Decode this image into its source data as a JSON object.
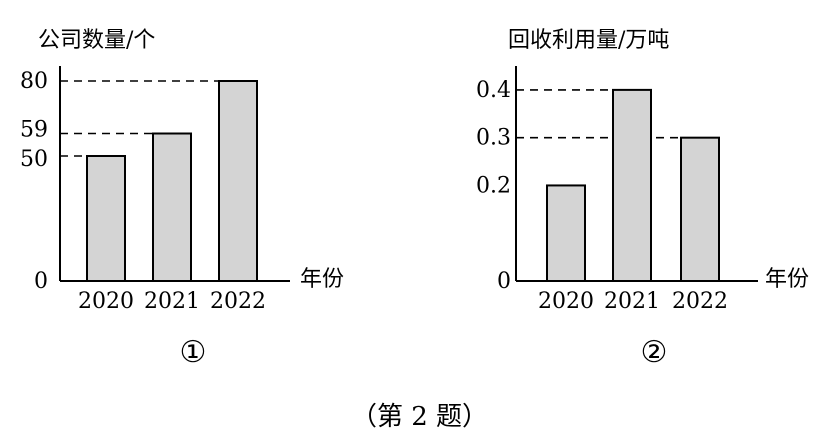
{
  "caption": "（第 2 题）",
  "colors": {
    "bar_fill": "#d4d4d4",
    "ink": "#000000"
  },
  "chart_data": [
    {
      "type": "bar",
      "ylabel": "公司数量/个",
      "xlabel": "年份",
      "categories": [
        "2020",
        "2021",
        "2022"
      ],
      "values": [
        50,
        59,
        80
      ],
      "yticks": [
        0,
        50,
        59,
        80
      ],
      "ytick_labels": [
        "0",
        "50",
        "59",
        "80"
      ],
      "dashed_lines": [
        50,
        59,
        80
      ],
      "ylim": [
        0,
        86
      ],
      "number_label": "①",
      "grid": false
    },
    {
      "type": "bar",
      "ylabel": "回收利用量/万吨",
      "xlabel": "年份",
      "categories": [
        "2020",
        "2021",
        "2022"
      ],
      "values": [
        0.2,
        0.4,
        0.3
      ],
      "yticks": [
        0,
        0.2,
        0.3,
        0.4
      ],
      "ytick_labels": [
        "0",
        "0.2",
        "0.3",
        "0.4"
      ],
      "dashed_lines": [
        0.3,
        0.4
      ],
      "ylim": [
        0,
        0.45
      ],
      "number_label": "②",
      "grid": false
    }
  ]
}
